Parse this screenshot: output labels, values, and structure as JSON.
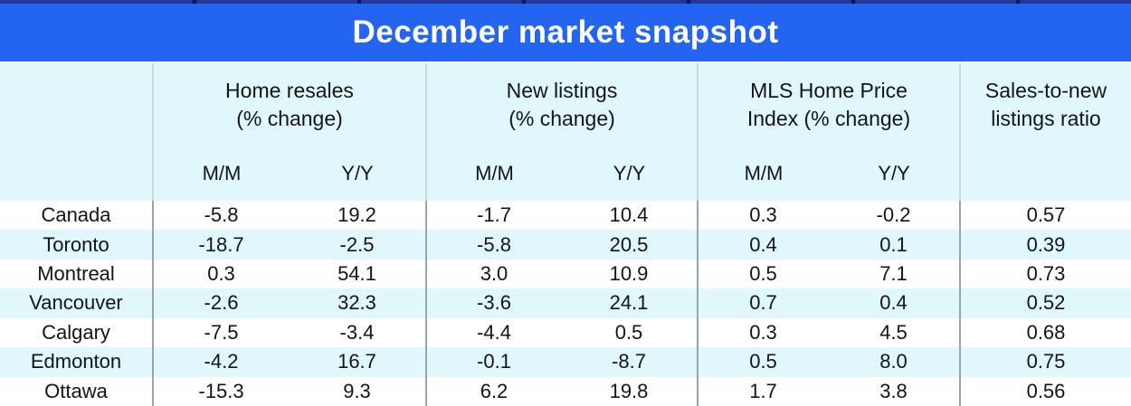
{
  "title_bar": {
    "title": "December market snapshot"
  },
  "columns": {
    "groups": [
      {
        "line1": "Home resales",
        "line2": "(% change)",
        "sub_mm": "M/M",
        "sub_yy": "Y/Y"
      },
      {
        "line1": "New listings",
        "line2": "(% change)",
        "sub_mm": "M/M",
        "sub_yy": "Y/Y"
      },
      {
        "line1": "MLS Home Price",
        "line2": "Index (% change)",
        "sub_mm": "M/M",
        "sub_yy": "Y/Y"
      },
      {
        "line1": "Sales-to-new",
        "line2": "listings ratio"
      }
    ]
  },
  "rows": [
    {
      "region": "Canada",
      "v": [
        "-5.8",
        "19.2",
        "-1.7",
        "10.4",
        "0.3",
        "-0.2",
        "0.57"
      ]
    },
    {
      "region": "Toronto",
      "v": [
        "-18.7",
        "-2.5",
        "-5.8",
        "20.5",
        "0.4",
        "0.1",
        "0.39"
      ]
    },
    {
      "region": "Montreal",
      "v": [
        "0.3",
        "54.1",
        "3.0",
        "10.9",
        "0.5",
        "7.1",
        "0.73"
      ]
    },
    {
      "region": "Vancouver",
      "v": [
        "-2.6",
        "32.3",
        "-3.6",
        "24.1",
        "0.7",
        "0.4",
        "0.52"
      ]
    },
    {
      "region": "Calgary",
      "v": [
        "-7.5",
        "-3.4",
        "-4.4",
        "0.5",
        "0.3",
        "4.5",
        "0.68"
      ]
    },
    {
      "region": "Edmonton",
      "v": [
        "-4.2",
        "16.7",
        "-0.1",
        "-8.7",
        "0.5",
        "8.0",
        "0.75"
      ]
    },
    {
      "region": "Ottawa",
      "v": [
        "-15.3",
        "9.3",
        "6.2",
        "19.8",
        "1.7",
        "3.8",
        "0.56"
      ]
    }
  ],
  "colors": {
    "title_bar_bg": "#2364f0",
    "top_rule": "#27349e",
    "top_rule_tick": "#0c1650",
    "band_and_stripe_bg": "#e0f8fb",
    "divider_header": "#ccd9db",
    "divider_body": "#97a6a6",
    "title_text": "#ffffff",
    "body_text": "#141414"
  },
  "chart_data": {
    "type": "table",
    "title": "December market snapshot",
    "column_groups": [
      {
        "label": "Home resales (% change)",
        "columns": [
          "M/M",
          "Y/Y"
        ]
      },
      {
        "label": "New listings (% change)",
        "columns": [
          "M/M",
          "Y/Y"
        ]
      },
      {
        "label": "MLS Home Price Index (% change)",
        "columns": [
          "M/M",
          "Y/Y"
        ]
      },
      {
        "label": "Sales-to-new listings ratio",
        "columns": []
      }
    ],
    "rows": [
      {
        "region": "Canada",
        "home_resales_mm": -5.8,
        "home_resales_yy": 19.2,
        "new_listings_mm": -1.7,
        "new_listings_yy": 10.4,
        "hpi_mm": 0.3,
        "hpi_yy": -0.2,
        "sales_to_new_listings_ratio": 0.57
      },
      {
        "region": "Toronto",
        "home_resales_mm": -18.7,
        "home_resales_yy": -2.5,
        "new_listings_mm": -5.8,
        "new_listings_yy": 20.5,
        "hpi_mm": 0.4,
        "hpi_yy": 0.1,
        "sales_to_new_listings_ratio": 0.39
      },
      {
        "region": "Montreal",
        "home_resales_mm": 0.3,
        "home_resales_yy": 54.1,
        "new_listings_mm": 3.0,
        "new_listings_yy": 10.9,
        "hpi_mm": 0.5,
        "hpi_yy": 7.1,
        "sales_to_new_listings_ratio": 0.73
      },
      {
        "region": "Vancouver",
        "home_resales_mm": -2.6,
        "home_resales_yy": 32.3,
        "new_listings_mm": -3.6,
        "new_listings_yy": 24.1,
        "hpi_mm": 0.7,
        "hpi_yy": 0.4,
        "sales_to_new_listings_ratio": 0.52
      },
      {
        "region": "Calgary",
        "home_resales_mm": -7.5,
        "home_resales_yy": -3.4,
        "new_listings_mm": -4.4,
        "new_listings_yy": 0.5,
        "hpi_mm": 0.3,
        "hpi_yy": 4.5,
        "sales_to_new_listings_ratio": 0.68
      },
      {
        "region": "Edmonton",
        "home_resales_mm": -4.2,
        "home_resales_yy": 16.7,
        "new_listings_mm": -0.1,
        "new_listings_yy": -8.7,
        "hpi_mm": 0.5,
        "hpi_yy": 8.0,
        "sales_to_new_listings_ratio": 0.75
      },
      {
        "region": "Ottawa",
        "home_resales_mm": -15.3,
        "home_resales_yy": 9.3,
        "new_listings_mm": 6.2,
        "new_listings_yy": 19.8,
        "hpi_mm": 1.7,
        "hpi_yy": 3.8,
        "sales_to_new_listings_ratio": 0.56
      }
    ]
  }
}
